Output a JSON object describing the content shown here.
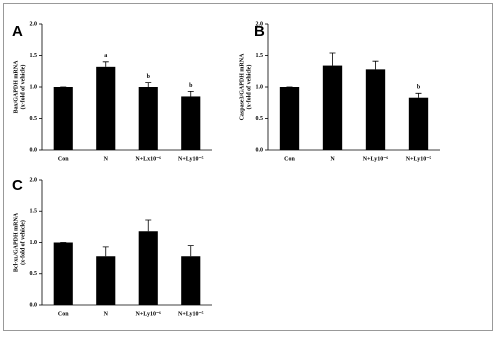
{
  "chart_data": [
    {
      "type": "bar",
      "panel": "A",
      "y_label": [
        "Bax/GAPDH mRNA",
        "(x-fold of vehicle)"
      ],
      "categories": [
        "Con",
        "N",
        "N+Lx10⁻⁶",
        "N+Ly10⁻⁵"
      ],
      "values": [
        1.0,
        1.32,
        1.0,
        0.85
      ],
      "errors": [
        0,
        0.08,
        0.07,
        0.08
      ],
      "annotations": [
        null,
        "a",
        "b",
        "b"
      ],
      "color": "#000000",
      "ylim": [
        0,
        2.0
      ],
      "yticks": [
        {
          "value": 0,
          "label": "0.0"
        },
        0.5,
        {
          "value": 1,
          "label": "1.0"
        },
        1.5,
        {
          "value": 2,
          "label": "2.0"
        }
      ]
    },
    {
      "type": "bar",
      "panel": "B",
      "y_label": [
        "Caspase3/GAPDH mRNA",
        "(x-fold of vehicle)"
      ],
      "categories": [
        "Con",
        "N",
        "N+Ly10⁻⁶",
        "N+Ly10⁻⁵"
      ],
      "values": [
        1.0,
        1.34,
        1.28,
        0.83
      ],
      "errors": [
        0,
        0.2,
        0.13,
        0.07
      ],
      "annotations": [
        null,
        null,
        null,
        "b"
      ],
      "color": "#000000",
      "ylim": [
        0,
        2.0
      ],
      "yticks": [
        {
          "value": 0,
          "label": "0.0"
        },
        0.5,
        {
          "value": 1,
          "label": "1.0"
        },
        1.5,
        {
          "value": 2,
          "label": "2.0"
        }
      ]
    },
    {
      "type": "bar",
      "panel": "C",
      "y_label": [
        "Bcl-xʟ/GAPDH mRNA",
        "(x-fold of vehicle)"
      ],
      "categories": [
        "Con",
        "N",
        "N+Ly10⁻⁶",
        "N+Ly10⁻⁵"
      ],
      "values": [
        1.0,
        0.78,
        1.18,
        0.78
      ],
      "errors": [
        0,
        0.15,
        0.18,
        0.17
      ],
      "annotations": [
        null,
        null,
        null,
        null
      ],
      "color": "#000000",
      "ylim": [
        0,
        2.0
      ],
      "yticks": [
        {
          "value": 0,
          "label": "0.0"
        },
        0.5,
        {
          "value": 1,
          "label": "1.0"
        },
        1.5,
        {
          "value": 2,
          "label": "2.0"
        }
      ]
    }
  ]
}
